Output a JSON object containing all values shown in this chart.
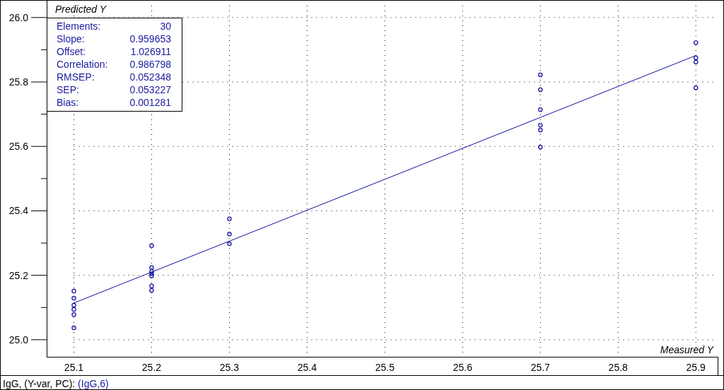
{
  "chart_data": {
    "type": "scatter",
    "xlabel": "Measured Y",
    "ylabel": "Predicted Y",
    "xlim": [
      25.065,
      25.928
    ],
    "ylim": [
      24.947,
      26.05
    ],
    "xticks": [
      25.1,
      25.2,
      25.3,
      25.4,
      25.5,
      25.6,
      25.7,
      25.8,
      25.9
    ],
    "yticks": [
      {
        "value": 25.0,
        "label": "25.0"
      },
      {
        "value": 25.1,
        "label": null
      },
      {
        "value": 25.2,
        "label": "25.2"
      },
      {
        "value": 25.3,
        "label": null
      },
      {
        "value": 25.4,
        "label": "25.4"
      },
      {
        "value": 25.5,
        "label": null
      },
      {
        "value": 25.6,
        "label": "25.6"
      },
      {
        "value": 25.7,
        "label": null
      },
      {
        "value": 25.8,
        "label": "25.8"
      },
      {
        "value": 25.9,
        "label": null
      },
      {
        "value": 26.0,
        "label": "26.0"
      }
    ],
    "grid": true,
    "series": [
      {
        "color": "#1010a0",
        "marker": "circle",
        "x": [
          25.1,
          25.1,
          25.1,
          25.1,
          25.1,
          25.1,
          25.2,
          25.2,
          25.2,
          25.2,
          25.2,
          25.2,
          25.2,
          25.3,
          25.3,
          25.3,
          25.7,
          25.7,
          25.7,
          25.7,
          25.7,
          25.7,
          25.9,
          25.9,
          25.9,
          25.9
        ],
        "values": [
          25.151,
          25.129,
          25.107,
          25.094,
          25.078,
          25.037,
          25.292,
          25.224,
          25.212,
          25.205,
          25.198,
          25.167,
          25.153,
          25.375,
          25.328,
          25.298,
          25.822,
          25.776,
          25.714,
          25.666,
          25.651,
          25.598,
          25.922,
          25.875,
          25.862,
          25.782
        ]
      },
      {
        "type": "line",
        "marker": "none",
        "color": "#1010a0",
        "x": [
          25.1,
          25.9
        ],
        "values": [
          25.114,
          25.882
        ]
      }
    ],
    "annotations": [
      "Elements: 30",
      "Slope: 0.959653",
      "Offset: 1.026911",
      "Correlation: 0.986798",
      "RMSEP: 0.052348",
      "SEP: 0.053227",
      "Bias: 0.001281",
      "IgG, (Y-var, PC): (IgG,6)"
    ]
  }
}
